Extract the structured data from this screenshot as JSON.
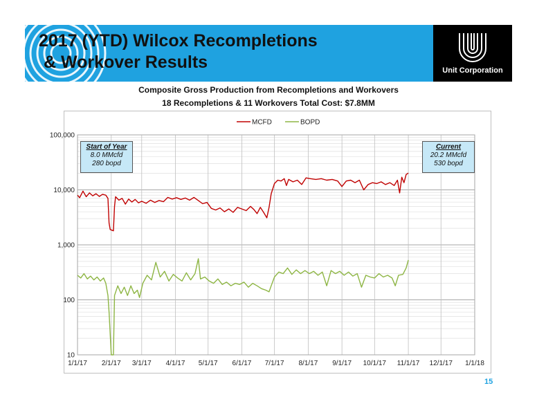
{
  "slide": {
    "title_line1": "2017 (YTD) Wilcox Recompletions",
    "title_line2": " & Workover Results",
    "logo_text": "Unit Corporation",
    "subtitle_line1": "Composite Gross Production from Recompletions and Workovers",
    "subtitle_line2": "18 Recompletions  &  11 Workovers     Total Cost: $7.8MM",
    "page_number": "15",
    "colors": {
      "banner": "#1fa2e0",
      "logo_bg": "#000000",
      "mcfd": "#c00000",
      "bopd": "#8db543",
      "callout": "#c6e8f7"
    }
  },
  "callouts": {
    "start": {
      "heading": "Start of Year",
      "line1": "8.0 MMcfd",
      "line2": "280 bopd"
    },
    "current": {
      "heading": "Current",
      "line1": "20.2 MMcfd",
      "line2": "530 bopd"
    }
  },
  "chart_data": {
    "type": "line",
    "title": "",
    "xlabel": "",
    "ylabel": "",
    "y_scale": "log",
    "ylim": [
      10,
      100000
    ],
    "y_ticks": [
      10,
      100,
      1000,
      10000,
      100000
    ],
    "y_tick_labels": [
      "10",
      "100",
      "1,000",
      "10,000",
      "100,000"
    ],
    "xlim": [
      "2017-01-01",
      "2018-01-01"
    ],
    "x_tick_dates": [
      "2017-01-01",
      "2017-02-01",
      "2017-03-01",
      "2017-04-01",
      "2017-05-01",
      "2017-06-01",
      "2017-07-01",
      "2017-08-01",
      "2017-09-01",
      "2017-10-01",
      "2017-11-01",
      "2017-12-01",
      "2018-01-01"
    ],
    "x_tick_labels": [
      "1/1/17",
      "2/1/17",
      "3/1/17",
      "4/1/17",
      "5/1/17",
      "6/1/17",
      "7/1/17",
      "8/1/17",
      "9/1/17",
      "10/1/17",
      "11/1/17",
      "12/1/17",
      "1/1/18"
    ],
    "grid": true,
    "legend_position": "top-center",
    "series": [
      {
        "name": "MCFD",
        "points": [
          [
            "2017-01-01",
            8000
          ],
          [
            "2017-01-03",
            7200
          ],
          [
            "2017-01-06",
            9500
          ],
          [
            "2017-01-09",
            7500
          ],
          [
            "2017-01-12",
            8800
          ],
          [
            "2017-01-15",
            7800
          ],
          [
            "2017-01-18",
            8500
          ],
          [
            "2017-01-21",
            7600
          ],
          [
            "2017-01-24",
            8300
          ],
          [
            "2017-01-27",
            8000
          ],
          [
            "2017-01-29",
            7000
          ],
          [
            "2017-01-30",
            2500
          ],
          [
            "2017-01-31",
            1900
          ],
          [
            "2017-02-03",
            1800
          ],
          [
            "2017-02-04",
            5000
          ],
          [
            "2017-02-05",
            7500
          ],
          [
            "2017-02-08",
            6500
          ],
          [
            "2017-02-11",
            7000
          ],
          [
            "2017-02-14",
            5500
          ],
          [
            "2017-02-17",
            6800
          ],
          [
            "2017-02-20",
            6000
          ],
          [
            "2017-02-23",
            6700
          ],
          [
            "2017-02-26",
            5800
          ],
          [
            "2017-03-01",
            6200
          ],
          [
            "2017-03-05",
            5700
          ],
          [
            "2017-03-09",
            6500
          ],
          [
            "2017-03-13",
            5900
          ],
          [
            "2017-03-17",
            6400
          ],
          [
            "2017-03-21",
            6100
          ],
          [
            "2017-03-25",
            7300
          ],
          [
            "2017-03-29",
            6800
          ],
          [
            "2017-04-02",
            7200
          ],
          [
            "2017-04-06",
            6700
          ],
          [
            "2017-04-10",
            7100
          ],
          [
            "2017-04-14",
            6500
          ],
          [
            "2017-04-18",
            7300
          ],
          [
            "2017-04-22",
            6400
          ],
          [
            "2017-04-26",
            5600
          ],
          [
            "2017-04-30",
            5900
          ],
          [
            "2017-05-04",
            4600
          ],
          [
            "2017-05-08",
            4300
          ],
          [
            "2017-05-12",
            4700
          ],
          [
            "2017-05-16",
            4000
          ],
          [
            "2017-05-20",
            4500
          ],
          [
            "2017-05-24",
            3900
          ],
          [
            "2017-05-28",
            4800
          ],
          [
            "2017-06-01",
            4500
          ],
          [
            "2017-06-05",
            4200
          ],
          [
            "2017-06-09",
            5000
          ],
          [
            "2017-06-12",
            4400
          ],
          [
            "2017-06-15",
            3700
          ],
          [
            "2017-06-18",
            4800
          ],
          [
            "2017-06-21",
            3900
          ],
          [
            "2017-06-24",
            3100
          ],
          [
            "2017-06-26",
            4800
          ],
          [
            "2017-06-28",
            8500
          ],
          [
            "2017-07-01",
            13000
          ],
          [
            "2017-07-04",
            15000
          ],
          [
            "2017-07-07",
            14500
          ],
          [
            "2017-07-10",
            16000
          ],
          [
            "2017-07-12",
            12000
          ],
          [
            "2017-07-14",
            15500
          ],
          [
            "2017-07-18",
            14000
          ],
          [
            "2017-07-22",
            15000
          ],
          [
            "2017-07-26",
            12500
          ],
          [
            "2017-07-30",
            16500
          ],
          [
            "2017-08-03",
            16000
          ],
          [
            "2017-08-08",
            15500
          ],
          [
            "2017-08-13",
            16000
          ],
          [
            "2017-08-18",
            15000
          ],
          [
            "2017-08-23",
            15500
          ],
          [
            "2017-08-28",
            14500
          ],
          [
            "2017-09-01",
            11500
          ],
          [
            "2017-09-05",
            14500
          ],
          [
            "2017-09-09",
            15000
          ],
          [
            "2017-09-13",
            13500
          ],
          [
            "2017-09-17",
            15000
          ],
          [
            "2017-09-21",
            10000
          ],
          [
            "2017-09-25",
            12500
          ],
          [
            "2017-09-29",
            13500
          ],
          [
            "2017-10-03",
            13000
          ],
          [
            "2017-10-07",
            14000
          ],
          [
            "2017-10-11",
            12500
          ],
          [
            "2017-10-15",
            13500
          ],
          [
            "2017-10-19",
            12000
          ],
          [
            "2017-10-22",
            15000
          ],
          [
            "2017-10-24",
            8800
          ],
          [
            "2017-10-26",
            17000
          ],
          [
            "2017-10-28",
            13500
          ],
          [
            "2017-10-30",
            19000
          ],
          [
            "2017-11-01",
            20200
          ]
        ]
      },
      {
        "name": "BOPD",
        "points": [
          [
            "2017-01-01",
            280
          ],
          [
            "2017-01-04",
            250
          ],
          [
            "2017-01-07",
            300
          ],
          [
            "2017-01-10",
            240
          ],
          [
            "2017-01-13",
            270
          ],
          [
            "2017-01-16",
            230
          ],
          [
            "2017-01-19",
            260
          ],
          [
            "2017-01-22",
            220
          ],
          [
            "2017-01-25",
            250
          ],
          [
            "2017-01-27",
            200
          ],
          [
            "2017-01-29",
            120
          ],
          [
            "2017-01-30",
            60
          ],
          [
            "2017-02-01",
            10
          ],
          [
            "2017-02-03",
            10
          ],
          [
            "2017-02-04",
            120
          ],
          [
            "2017-02-07",
            180
          ],
          [
            "2017-02-10",
            130
          ],
          [
            "2017-02-13",
            170
          ],
          [
            "2017-02-16",
            120
          ],
          [
            "2017-02-19",
            180
          ],
          [
            "2017-02-22",
            130
          ],
          [
            "2017-02-25",
            150
          ],
          [
            "2017-02-27",
            110
          ],
          [
            "2017-03-02",
            200
          ],
          [
            "2017-03-06",
            280
          ],
          [
            "2017-03-10",
            230
          ],
          [
            "2017-03-14",
            480
          ],
          [
            "2017-03-18",
            260
          ],
          [
            "2017-03-22",
            330
          ],
          [
            "2017-03-26",
            220
          ],
          [
            "2017-03-30",
            290
          ],
          [
            "2017-04-03",
            250
          ],
          [
            "2017-04-07",
            220
          ],
          [
            "2017-04-11",
            310
          ],
          [
            "2017-04-15",
            230
          ],
          [
            "2017-04-19",
            300
          ],
          [
            "2017-04-22",
            560
          ],
          [
            "2017-04-24",
            240
          ],
          [
            "2017-04-28",
            260
          ],
          [
            "2017-05-02",
            220
          ],
          [
            "2017-05-06",
            200
          ],
          [
            "2017-05-10",
            240
          ],
          [
            "2017-05-14",
            190
          ],
          [
            "2017-05-18",
            210
          ],
          [
            "2017-05-22",
            180
          ],
          [
            "2017-05-26",
            200
          ],
          [
            "2017-05-30",
            190
          ],
          [
            "2017-06-03",
            210
          ],
          [
            "2017-06-07",
            170
          ],
          [
            "2017-06-11",
            200
          ],
          [
            "2017-06-15",
            180
          ],
          [
            "2017-06-19",
            160
          ],
          [
            "2017-06-23",
            150
          ],
          [
            "2017-06-26",
            140
          ],
          [
            "2017-06-28",
            180
          ],
          [
            "2017-07-01",
            260
          ],
          [
            "2017-07-05",
            320
          ],
          [
            "2017-07-09",
            300
          ],
          [
            "2017-07-13",
            380
          ],
          [
            "2017-07-17",
            290
          ],
          [
            "2017-07-21",
            350
          ],
          [
            "2017-07-25",
            300
          ],
          [
            "2017-07-29",
            340
          ],
          [
            "2017-08-02",
            300
          ],
          [
            "2017-08-06",
            330
          ],
          [
            "2017-08-10",
            280
          ],
          [
            "2017-08-14",
            320
          ],
          [
            "2017-08-18",
            180
          ],
          [
            "2017-08-22",
            340
          ],
          [
            "2017-08-26",
            300
          ],
          [
            "2017-08-30",
            330
          ],
          [
            "2017-09-03",
            280
          ],
          [
            "2017-09-07",
            320
          ],
          [
            "2017-09-11",
            270
          ],
          [
            "2017-09-15",
            300
          ],
          [
            "2017-09-19",
            170
          ],
          [
            "2017-09-23",
            280
          ],
          [
            "2017-09-27",
            260
          ],
          [
            "2017-10-01",
            250
          ],
          [
            "2017-10-05",
            300
          ],
          [
            "2017-10-09",
            260
          ],
          [
            "2017-10-13",
            280
          ],
          [
            "2017-10-17",
            250
          ],
          [
            "2017-10-20",
            180
          ],
          [
            "2017-10-23",
            280
          ],
          [
            "2017-10-27",
            290
          ],
          [
            "2017-10-30",
            380
          ],
          [
            "2017-11-01",
            530
          ]
        ]
      }
    ]
  }
}
